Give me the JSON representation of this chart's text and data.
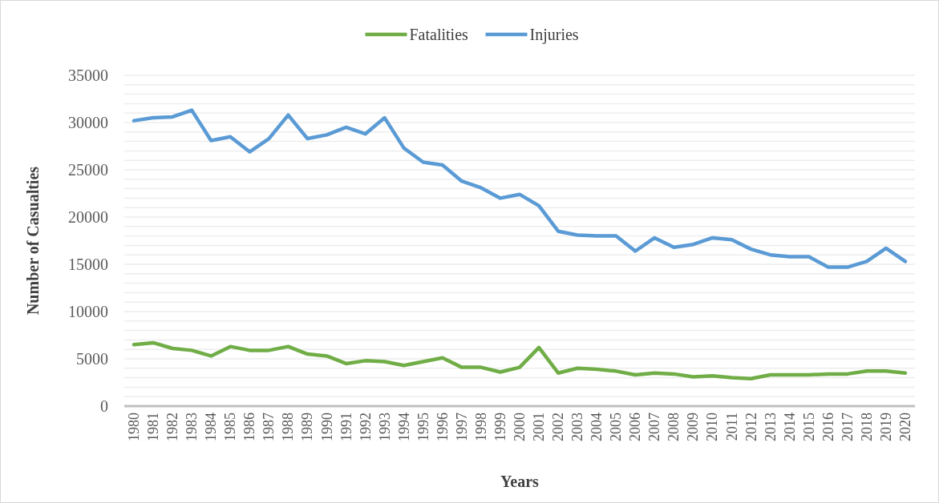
{
  "chart_data": {
    "type": "line",
    "xlabel": "Years",
    "ylabel": "Number of Casualties",
    "categories": [
      "1980",
      "1981",
      "1982",
      "1983",
      "1984",
      "1985",
      "1986",
      "1987",
      "1988",
      "1989",
      "1990",
      "1991",
      "1992",
      "1993",
      "1994",
      "1995",
      "1996",
      "1997",
      "1998",
      "1999",
      "2000",
      "2001",
      "2002",
      "2003",
      "2004",
      "2005",
      "2006",
      "2007",
      "2008",
      "2009",
      "2010",
      "2011",
      "2012",
      "2013",
      "2014",
      "2015",
      "2016",
      "2017",
      "2018",
      "2019",
      "2020"
    ],
    "series": [
      {
        "name": "Fatalities",
        "color": "#70ad47",
        "values": [
          6500,
          6700,
          6100,
          5900,
          5300,
          6300,
          5900,
          5900,
          6300,
          5500,
          5300,
          4500,
          4800,
          4700,
          4300,
          4700,
          5100,
          4100,
          4100,
          3600,
          4100,
          6200,
          3500,
          4000,
          3900,
          3700,
          3300,
          3500,
          3400,
          3100,
          3200,
          3000,
          2900,
          3300,
          3300,
          3300,
          3400,
          3400,
          3700,
          3700,
          3500
        ]
      },
      {
        "name": "Injuries",
        "color": "#5b9bd5",
        "values": [
          30200,
          30500,
          30600,
          31300,
          28100,
          28500,
          26900,
          28300,
          30800,
          28300,
          28700,
          29500,
          28800,
          30500,
          27300,
          25800,
          25500,
          23800,
          23100,
          22000,
          22400,
          21200,
          18500,
          18100,
          18000,
          18000,
          16400,
          17800,
          16800,
          17100,
          17800,
          17600,
          16600,
          16000,
          15800,
          15800,
          14700,
          14700,
          15300,
          16700,
          15300
        ]
      }
    ],
    "ylim": [
      0,
      35000
    ],
    "yticks": [
      0,
      {
        "value": 1000,
        "label": null
      },
      {
        "value": 2000,
        "label": null
      },
      {
        "value": 3000,
        "label": null
      },
      {
        "value": 4000,
        "label": null
      },
      5000,
      {
        "value": 6000,
        "label": null
      },
      {
        "value": 7000,
        "label": null
      },
      {
        "value": 8000,
        "label": null
      },
      {
        "value": 9000,
        "label": null
      },
      10000,
      {
        "value": 11000,
        "label": null
      },
      {
        "value": 12000,
        "label": null
      },
      {
        "value": 13000,
        "label": null
      },
      {
        "value": 14000,
        "label": null
      },
      15000,
      {
        "value": 16000,
        "label": null
      },
      {
        "value": 17000,
        "label": null
      },
      {
        "value": 18000,
        "label": null
      },
      {
        "value": 19000,
        "label": null
      },
      20000,
      {
        "value": 21000,
        "label": null
      },
      {
        "value": 22000,
        "label": null
      },
      {
        "value": 23000,
        "label": null
      },
      {
        "value": 24000,
        "label": null
      },
      25000,
      {
        "value": 26000,
        "label": null
      },
      {
        "value": 27000,
        "label": null
      },
      {
        "value": 28000,
        "label": null
      },
      {
        "value": 29000,
        "label": null
      },
      30000,
      {
        "value": 31000,
        "label": null
      },
      {
        "value": 32000,
        "label": null
      },
      {
        "value": 33000,
        "label": null
      },
      {
        "value": 34000,
        "label": null
      },
      35000
    ],
    "grid": "y",
    "legend": "top",
    "marker": "none",
    "line_style": "solid"
  }
}
